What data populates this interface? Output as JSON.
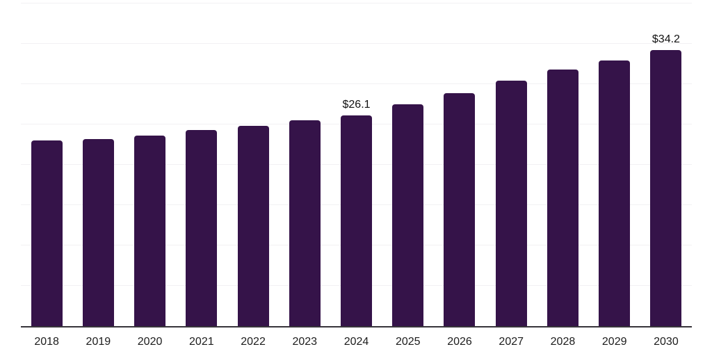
{
  "chart_data": {
    "type": "bar",
    "title": "",
    "xlabel": "",
    "ylabel": "",
    "categories": [
      "2018",
      "2019",
      "2020",
      "2021",
      "2022",
      "2023",
      "2024",
      "2025",
      "2026",
      "2027",
      "2028",
      "2029",
      "2030"
    ],
    "values": [
      23.0,
      23.2,
      23.6,
      24.3,
      24.8,
      25.5,
      26.1,
      27.5,
      28.9,
      30.4,
      31.8,
      32.9,
      34.2
    ],
    "value_labels": [
      "",
      "",
      "",
      "",
      "",
      "",
      "$26.1",
      "",
      "",
      "",
      "",
      "",
      "$34.2"
    ],
    "ylim": [
      0,
      40
    ],
    "gridline_step": 5,
    "grid": "horizontal-only",
    "legend": "none",
    "y_axis_tick_labels": "none",
    "colors": {
      "bar": "#351349",
      "axis_line": "#37343a",
      "gridline": "#f2f1f3",
      "tick_label": "#1c1c1c",
      "value_label": "#111111",
      "background": "#ffffff"
    }
  }
}
